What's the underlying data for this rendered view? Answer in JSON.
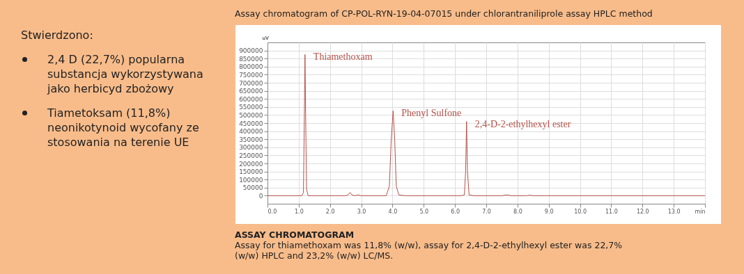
{
  "chart_data": {
    "type": "line",
    "title": "Assay chromatogram of CP-POL-RYN-19-04-07015 under chlorantraniliprole assay HPLC method",
    "ylabel": "uV",
    "annotations": [
      "Stwierdzono:",
      "2,4 D (22,7%) popularna substancja wykorzystywana jako herbicyd zbożowy",
      "Tiametoksam (11,8%) neonikotynoid wycofany ze stosowania na terenie UE",
      "ASSAY CHROMATOGRAM",
      "Assay for thiamethoxam was 11,8% (w/w), assay for 2,4-D-2-ethylhexyl ester was 22,7% (w/w) HPLC and 23,2% (w/w) LC/MS.",
      {
        "text": "Thiamethoxam",
        "x": 1.2,
        "y": 875000
      },
      {
        "text": "Phenyl Sulfone",
        "x": 4.02,
        "y": 526000
      },
      {
        "text": "2,4-D-2-ethylhexyl ester",
        "x": 6.37,
        "y": 460000
      }
    ],
    "series": [
      {
        "color": "#b5524a",
        "x": [
          0,
          1.1,
          1.15,
          1.18,
          1.2,
          1.22,
          1.25,
          1.3,
          2.5,
          2.58,
          2.64,
          2.7,
          2.8,
          2.9,
          3.0,
          3.8,
          3.9,
          3.96,
          4.02,
          4.07,
          4.12,
          4.2,
          4.4,
          6.2,
          6.3,
          6.34,
          6.37,
          6.4,
          6.45,
          6.6,
          7.5,
          7.65,
          7.8,
          8.3,
          8.4,
          8.5,
          14
        ],
        "values": [
          0,
          0,
          20000,
          500000,
          875000,
          500000,
          40000,
          0,
          0,
          5000,
          20000,
          5000,
          0,
          5000,
          0,
          0,
          60000,
          350000,
          526000,
          350000,
          60000,
          5000,
          0,
          0,
          5000,
          150000,
          460000,
          150000,
          5000,
          0,
          0,
          5000,
          0,
          0,
          3000,
          0,
          0
        ]
      }
    ],
    "xlim": [
      0,
      14
    ],
    "ylim": [
      -50000,
      950000
    ],
    "xticks": [
      {
        "value": 0,
        "label": "0.0"
      },
      {
        "value": 1,
        "label": "1.0"
      },
      {
        "value": 2,
        "label": "2.0"
      },
      {
        "value": 3,
        "label": "3.0"
      },
      {
        "value": 4,
        "label": "4.0"
      },
      {
        "value": 5,
        "label": "5.0"
      },
      {
        "value": 6,
        "label": "6.0"
      },
      {
        "value": 7,
        "label": "7.0"
      },
      {
        "value": 8,
        "label": "8.0"
      },
      {
        "value": 9,
        "label": "9.0"
      },
      {
        "value": 10,
        "label": "10.0"
      },
      {
        "value": 11,
        "label": "11.0"
      },
      {
        "value": 12,
        "label": "12.0"
      },
      {
        "value": 13,
        "label": "13.0"
      },
      {
        "value": 14,
        "label": "min"
      }
    ],
    "yticks": [
      0,
      50000,
      100000,
      150000,
      200000,
      250000,
      300000,
      350000,
      400000,
      450000,
      500000,
      550000,
      600000,
      650000,
      700000,
      750000,
      800000,
      850000,
      900000
    ],
    "grid": true,
    "marker": "none",
    "line_style": "solid"
  }
}
